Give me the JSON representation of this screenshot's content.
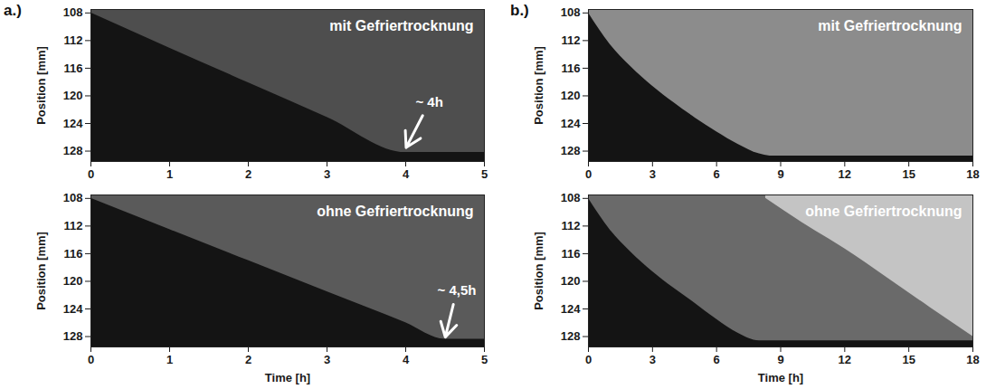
{
  "chart_data": [
    {
      "type": "area",
      "label": "a.)",
      "title": "mit Gefriertrocknung",
      "ylabel": "Position [mm]",
      "xlim": [
        0,
        5
      ],
      "xticks": [
        0,
        1,
        2,
        3,
        4,
        5
      ],
      "ylim": [
        107.5,
        129.5
      ],
      "yticks": [
        108,
        112,
        116,
        120,
        124,
        128
      ],
      "color": "#141414",
      "series": [
        {
          "color": "#4e4e4e",
          "x": [
            0,
            1,
            2,
            3,
            4,
            5
          ],
          "values": [
            108,
            113.1,
            118.1,
            123.1,
            128.2,
            128.2
          ]
        }
      ],
      "annotations": [
        {
          "text": "~ 4h",
          "x": 4.3,
          "y": 121,
          "arrow_to": [
            4.0,
            127.6
          ]
        }
      ]
    },
    {
      "type": "area",
      "label": "b.)",
      "title": "mit Gefriertrocknung",
      "ylabel": "Position [mm]",
      "xlim": [
        0,
        18
      ],
      "xticks": [
        0,
        3,
        6,
        9,
        12,
        15,
        18
      ],
      "ylim": [
        107.5,
        129.5
      ],
      "yticks": [
        108,
        112,
        116,
        120,
        124,
        128
      ],
      "color": "#141414",
      "series": [
        {
          "color": "#8c8c8c",
          "x": [
            0,
            1,
            2,
            3,
            4,
            5,
            6,
            7,
            8,
            8.5,
            18
          ],
          "values": [
            108,
            112.5,
            115.8,
            118.6,
            121,
            123.2,
            125.2,
            127,
            128.4,
            128.7,
            128.7
          ]
        }
      ]
    },
    {
      "type": "area",
      "title": "ohne Gefriertrocknung",
      "ylabel": "Position [mm]",
      "xlabel": "Time [h]",
      "xlim": [
        0,
        5
      ],
      "xticks": [
        0,
        1,
        2,
        3,
        4,
        5
      ],
      "ylim": [
        107.5,
        129.5
      ],
      "yticks": [
        108,
        112,
        116,
        120,
        124,
        128
      ],
      "color": "#141414",
      "series": [
        {
          "color": "#5a5a5a",
          "x": [
            0,
            1,
            2,
            3,
            4,
            4.5,
            5
          ],
          "values": [
            108,
            112.5,
            117,
            121.5,
            126,
            128.4,
            128.4
          ]
        }
      ],
      "annotations": [
        {
          "text": "~ 4,5h",
          "x": 4.65,
          "y": 121.3,
          "arrow_to": [
            4.5,
            128.2
          ]
        }
      ]
    },
    {
      "type": "area",
      "title": "ohne Gefriertrocknung",
      "ylabel": "Position [mm]",
      "xlabel": "Time [h]",
      "xlim": [
        0,
        18
      ],
      "xticks": [
        0,
        3,
        6,
        9,
        12,
        15,
        18
      ],
      "ylim": [
        107.5,
        129.5
      ],
      "yticks": [
        108,
        112,
        116,
        120,
        124,
        128
      ],
      "color": "#141414",
      "series": [
        {
          "color": "#6a6a6a",
          "x": [
            0,
            1,
            2,
            3,
            4,
            5,
            6,
            7,
            8,
            18
          ],
          "values": [
            108,
            112.5,
            115.8,
            118.6,
            121,
            123.2,
            125.5,
            127.5,
            128.6,
            128.6
          ]
        },
        {
          "color": "#c4c4c4",
          "x": [
            8.3,
            10,
            12,
            14,
            16,
            18
          ],
          "values": [
            108,
            111.5,
            115.3,
            119.5,
            123.8,
            128
          ]
        }
      ]
    }
  ]
}
